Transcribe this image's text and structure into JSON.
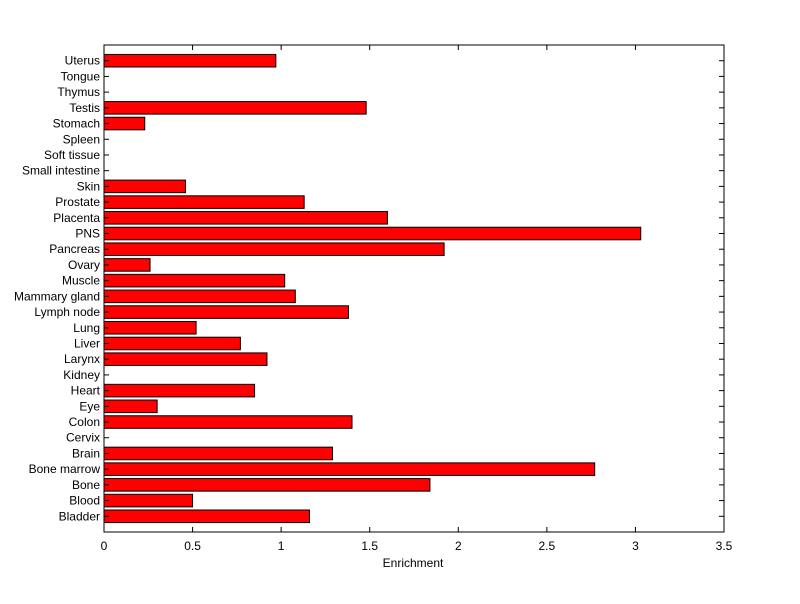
{
  "chart_data": {
    "type": "bar",
    "orientation": "horizontal",
    "xlabel": "Enrichment",
    "ylabel": "",
    "title": "",
    "xlim": [
      0,
      3.5
    ],
    "xticks": [
      "0",
      "0.5",
      "1",
      "1.5",
      "2",
      "2.5",
      "3",
      "3.5"
    ],
    "grid": false,
    "bar_color": "#ff0000",
    "bar_edge_color": "#000000",
    "categories": [
      "Bladder",
      "Blood",
      "Bone",
      "Bone marrow",
      "Brain",
      "Cervix",
      "Colon",
      "Eye",
      "Heart",
      "Kidney",
      "Larynx",
      "Liver",
      "Lung",
      "Lymph node",
      "Mammary gland",
      "Muscle",
      "Ovary",
      "Pancreas",
      "PNS",
      "Placenta",
      "Prostate",
      "Skin",
      "Small intestine",
      "Soft tissue",
      "Spleen",
      "Stomach",
      "Testis",
      "Thymus",
      "Tongue",
      "Uterus"
    ],
    "values": [
      1.16,
      0.5,
      1.84,
      2.77,
      1.29,
      0,
      1.4,
      0.3,
      0.85,
      0,
      0.92,
      0.77,
      0.52,
      1.38,
      1.08,
      1.02,
      0.26,
      1.92,
      3.03,
      1.6,
      1.13,
      0.46,
      0,
      0,
      0,
      0.23,
      1.48,
      0,
      0,
      0.97
    ]
  }
}
